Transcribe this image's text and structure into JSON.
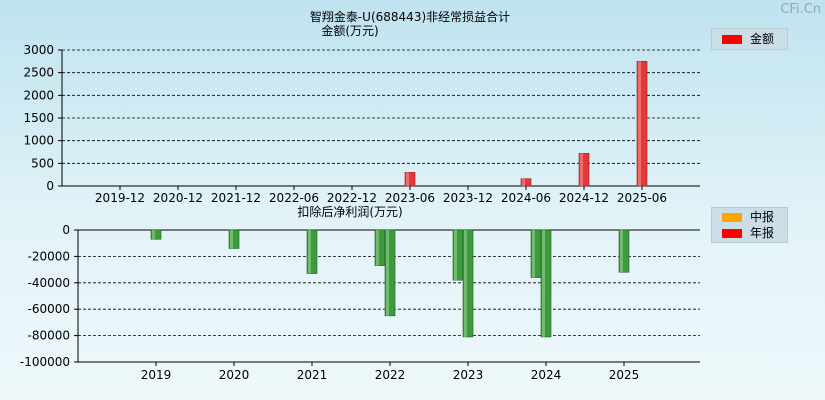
{
  "watermark": "CFi.Cn",
  "colors": {
    "annual": "#ff0000",
    "semiannual": "#ffa500",
    "bar_red": "#e03a3a",
    "bar_green": "#3f9a3f"
  },
  "chart_data": [
    {
      "type": "bar",
      "title": "智翔金泰-U(688443)非经常损益合计",
      "ylabel": "金额(万元)",
      "legend": [
        "金额"
      ],
      "categories": [
        "2019-12",
        "2020-12",
        "2021-12",
        "2022-06",
        "2022-12",
        "2023-06",
        "2023-12",
        "2024-06",
        "2024-12",
        "2025-06"
      ],
      "values": [
        0,
        0,
        0,
        0,
        0,
        300,
        0,
        160,
        720,
        2750
      ],
      "yticks": [
        0,
        500,
        1000,
        1500,
        2000,
        2500,
        3000
      ],
      "ylim": [
        0,
        3000
      ]
    },
    {
      "type": "bar",
      "title": "扣除后净利润(万元)",
      "legend": [
        "中报",
        "年报"
      ],
      "categories": [
        "2019",
        "2020",
        "2021",
        "2022",
        "2023",
        "2024",
        "2025"
      ],
      "series": [
        {
          "name": "中报",
          "values": [
            -7000,
            -14000,
            -33000,
            -27000,
            -38000,
            -36000,
            -32000
          ]
        },
        {
          "name": "年报",
          "values": [
            null,
            null,
            null,
            -65000,
            -81000,
            -81000,
            null
          ]
        }
      ],
      "yticks": [
        0,
        -20000,
        -40000,
        -60000,
        -80000,
        -100000
      ],
      "ylim": [
        -100000,
        0
      ]
    }
  ]
}
